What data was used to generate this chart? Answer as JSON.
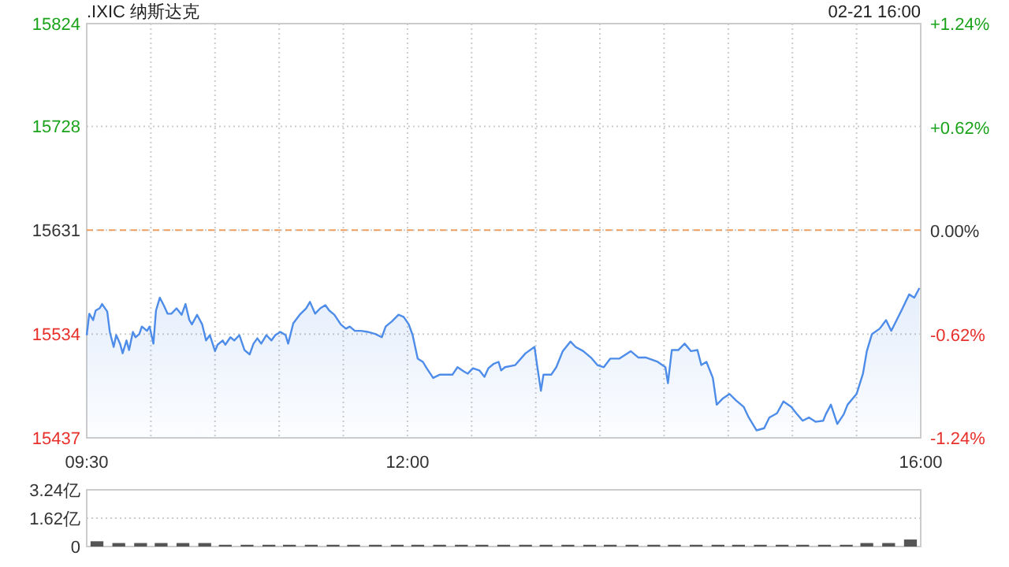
{
  "chart_data": [
    {
      "type": "area",
      "title": ".IXIC 纳斯达克",
      "annotations": [
        "02-21 16:00"
      ],
      "color": "#4d8ce8",
      "grid": true,
      "x": [
        9.5,
        9.52,
        9.55,
        9.57,
        9.6,
        9.62,
        9.66,
        9.68,
        9.71,
        9.73,
        9.76,
        9.78,
        9.81,
        9.83,
        9.86,
        9.88,
        9.91,
        9.93,
        9.97,
        9.99,
        10.02,
        10.04,
        10.07,
        10.1,
        10.13,
        10.16,
        10.2,
        10.24,
        10.27,
        10.3,
        10.32,
        10.36,
        10.4,
        10.43,
        10.46,
        10.5,
        10.52,
        10.56,
        10.58,
        10.62,
        10.65,
        10.69,
        10.73,
        10.77,
        10.8,
        10.83,
        10.86,
        10.9,
        10.94,
        10.97,
        11.01,
        11.05,
        11.07,
        11.11,
        11.16,
        11.21,
        11.24,
        11.28,
        11.32,
        11.36,
        11.39,
        11.43,
        11.48,
        11.52,
        11.55,
        11.59,
        11.64,
        11.69,
        11.75,
        11.8,
        11.83,
        11.88,
        11.93,
        11.97,
        12.01,
        12.04,
        12.08,
        12.12,
        12.15,
        12.2,
        12.25,
        12.3,
        12.35,
        12.39,
        12.44,
        12.47,
        12.51,
        12.56,
        12.6,
        12.63,
        12.67,
        12.71,
        12.73,
        12.76,
        12.84,
        12.92,
        12.99,
        13.01,
        13.04,
        13.06,
        13.12,
        13.16,
        13.21,
        13.27,
        13.31,
        13.37,
        13.43,
        13.48,
        13.53,
        13.58,
        13.65,
        13.74,
        13.8,
        13.86,
        13.95,
        14.01,
        14.03,
        14.06,
        14.11,
        14.16,
        14.21,
        14.26,
        14.29,
        14.33,
        14.38,
        14.41,
        14.46,
        14.51,
        14.56,
        14.62,
        14.66,
        14.72,
        14.78,
        14.82,
        14.88,
        14.93,
        14.99,
        15.03,
        15.08,
        15.13,
        15.18,
        15.24,
        15.26,
        15.3,
        15.35,
        15.4,
        15.43,
        15.5,
        15.55,
        15.58,
        15.62,
        15.68,
        15.73,
        15.77,
        15.8,
        15.85,
        15.91,
        15.95,
        15.99
      ],
      "values": [
        15533,
        15553,
        15547,
        15556,
        15558,
        15562,
        15555,
        15536,
        15522,
        15533,
        15525,
        15516,
        15528,
        15519,
        15536,
        15531,
        15534,
        15541,
        15537,
        15541,
        15525,
        15556,
        15568,
        15561,
        15553,
        15553,
        15558,
        15552,
        15562,
        15547,
        15543,
        15552,
        15543,
        15528,
        15533,
        15518,
        15524,
        15528,
        15524,
        15531,
        15528,
        15533,
        15519,
        15515,
        15525,
        15530,
        15525,
        15533,
        15528,
        15533,
        15536,
        15533,
        15525,
        15544,
        15552,
        15558,
        15564,
        15553,
        15558,
        15561,
        15556,
        15552,
        15543,
        15539,
        15541,
        15537,
        15537,
        15536,
        15534,
        15531,
        15541,
        15546,
        15552,
        15550,
        15543,
        15533,
        15511,
        15508,
        15502,
        15493,
        15496,
        15496,
        15496,
        15503,
        15499,
        15497,
        15502,
        15500,
        15494,
        15502,
        15506,
        15508,
        15500,
        15503,
        15505,
        15516,
        15522,
        15505,
        15481,
        15496,
        15496,
        15503,
        15518,
        15527,
        15522,
        15518,
        15512,
        15505,
        15503,
        15511,
        15511,
        15518,
        15512,
        15512,
        15508,
        15503,
        15488,
        15519,
        15519,
        15525,
        15518,
        15519,
        15505,
        15508,
        15493,
        15468,
        15474,
        15478,
        15472,
        15466,
        15456,
        15444,
        15446,
        15456,
        15460,
        15471,
        15466,
        15460,
        15453,
        15456,
        15452,
        15453,
        15459,
        15468,
        15450,
        15459,
        15468,
        15478,
        15497,
        15518,
        15534,
        15539,
        15547,
        15537,
        15544,
        15556,
        15571,
        15568,
        15577
      ],
      "xlim": [
        9.5,
        16
      ],
      "xticks": [
        {
          "value": 9.5,
          "label": "09:30"
        },
        {
          "value": 10,
          "label": null
        },
        {
          "value": 10.5,
          "label": null
        },
        {
          "value": 11,
          "label": null
        },
        {
          "value": 11.5,
          "label": null
        },
        {
          "value": 12,
          "label": "12:00"
        },
        {
          "value": 12.5,
          "label": null
        },
        {
          "value": 13,
          "label": null
        },
        {
          "value": 13.5,
          "label": null
        },
        {
          "value": 14,
          "label": null
        },
        {
          "value": 14.5,
          "label": null
        },
        {
          "value": 15,
          "label": null
        },
        {
          "value": 15.5,
          "label": null
        },
        {
          "value": 16,
          "label": "16:00"
        }
      ],
      "ylim": [
        15437,
        15824
      ],
      "yticks": [
        15437,
        15534,
        15631,
        15728,
        15824
      ],
      "y2lim": [
        -1.24,
        1.24
      ],
      "y2ticks": [
        {
          "value": -1.24,
          "label": "-1.24%"
        },
        {
          "value": -0.62,
          "label": "-0.62%"
        },
        {
          "value": 0,
          "label": "0.00%"
        },
        {
          "value": 0.62,
          "label": "+0.62%"
        },
        {
          "value": 1.24,
          "label": "+1.24%"
        }
      ],
      "ref_lines": [
        {
          "axis": "y",
          "value": 15631,
          "color": "#f0a060",
          "line_style": "dashed"
        }
      ]
    },
    {
      "type": "bar",
      "color": "#555555",
      "grid": "y",
      "tick_labels": "y",
      "x": [
        9.58,
        9.75,
        9.92,
        10.08,
        10.25,
        10.42,
        10.58,
        10.75,
        10.92,
        11.08,
        11.25,
        11.42,
        11.58,
        11.75,
        11.92,
        12.08,
        12.25,
        12.42,
        12.58,
        12.75,
        12.92,
        13.08,
        13.25,
        13.42,
        13.58,
        13.75,
        13.92,
        14.08,
        14.25,
        14.42,
        14.58,
        14.75,
        14.92,
        15.08,
        15.25,
        15.42,
        15.58,
        15.75,
        15.92
      ],
      "values": [
        0.3,
        0.2,
        0.2,
        0.2,
        0.2,
        0.2,
        0.1,
        0.1,
        0.1,
        0.1,
        0.1,
        0.1,
        0.1,
        0.1,
        0.1,
        0.1,
        0.1,
        0.1,
        0.1,
        0.1,
        0.1,
        0.1,
        0.1,
        0.1,
        0.1,
        0.1,
        0.1,
        0.1,
        0.1,
        0.1,
        0.1,
        0.1,
        0.1,
        0.1,
        0.1,
        0.1,
        0.2,
        0.2,
        0.4
      ],
      "xlim": [
        9.5,
        16
      ],
      "ylim": [
        0,
        3.24
      ],
      "yticks": [
        0,
        {
          "value": 1.62,
          "label": "1.62亿"
        },
        {
          "value": 3.24,
          "label": "3.24亿"
        }
      ]
    }
  ]
}
